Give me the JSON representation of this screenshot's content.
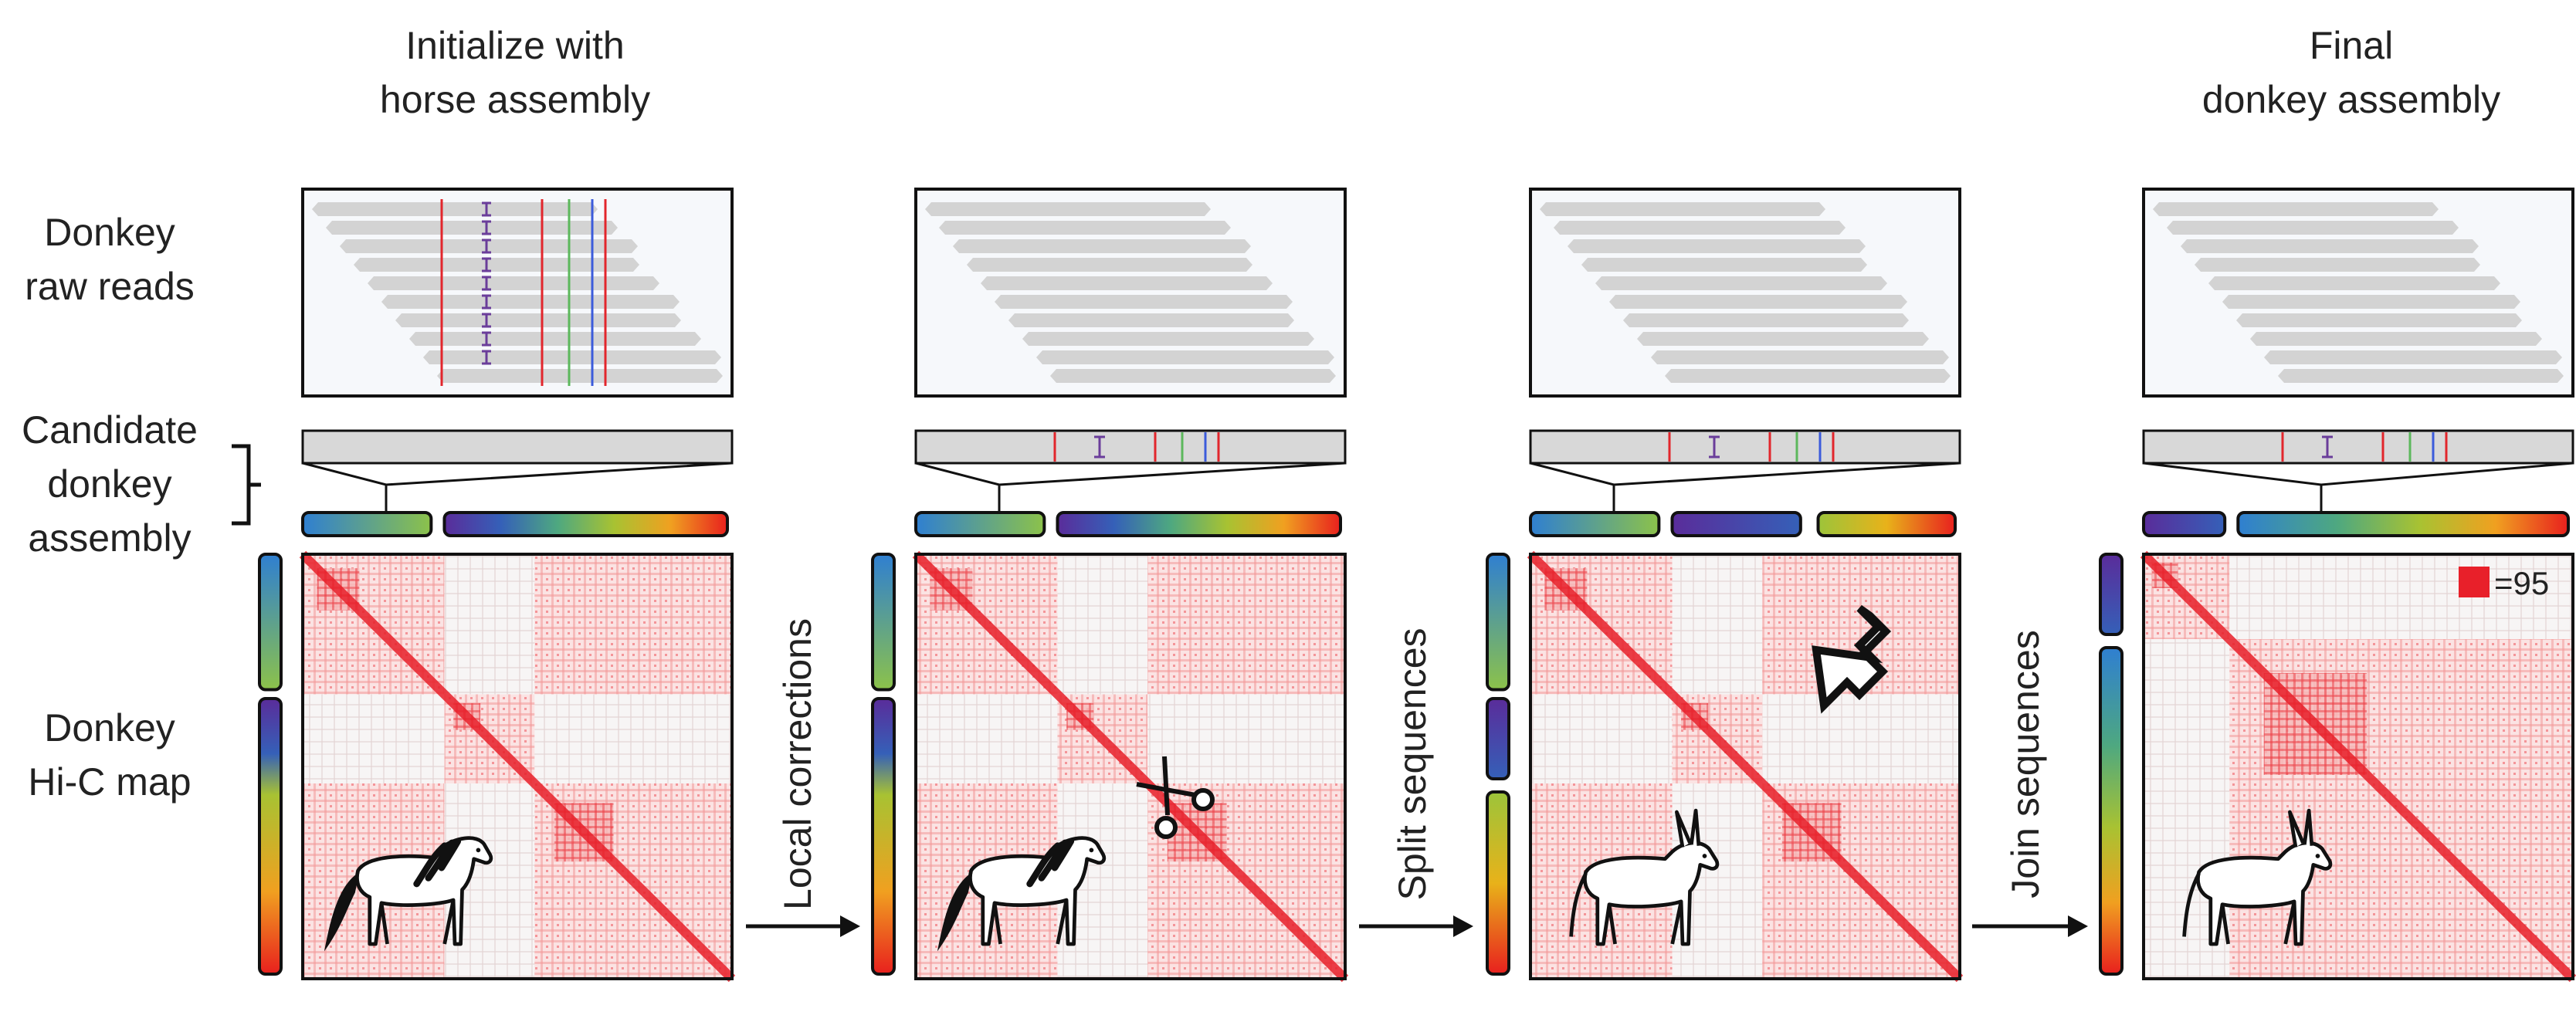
{
  "titles": {
    "initialize_line1": "Initialize with",
    "initialize_line2": "horse assembly",
    "final_line1": "Final",
    "final_line2": "donkey assembly"
  },
  "row_labels": {
    "raw_reads_line1": "Donkey",
    "raw_reads_line2": "raw reads",
    "candidate_line1": "Candidate",
    "candidate_line2": "donkey",
    "candidate_line3": "assembly",
    "hic_line1": "Donkey",
    "hic_line2": "Hi-C map"
  },
  "steps": {
    "local_corrections": "Local corrections",
    "split_sequences": "Split sequences",
    "join_sequences": "Join sequences"
  },
  "legend": {
    "label": "=95",
    "swatch_color": "#e8202a"
  },
  "colors": {
    "heatmap": "#e8202a",
    "read_bar": "#d3d3d3",
    "variant_red": "#e2262c",
    "variant_purple": "#6a3d9a",
    "variant_green": "#5cb85c",
    "variant_blue": "#3b5bdb"
  },
  "icons": {
    "horse": "horse-icon",
    "donkey": "donkey-icon",
    "scissors": "scissors-icon",
    "join_arrow": "join-arrow-icon"
  }
}
